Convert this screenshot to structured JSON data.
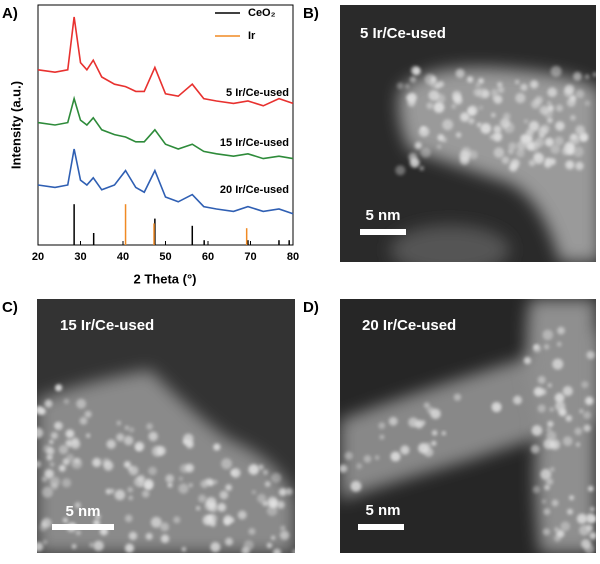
{
  "panel_labels": [
    "A)",
    "B)",
    "C)",
    "D)"
  ],
  "chart_data": {
    "type": "line",
    "xlabel": "2 Theta (°)",
    "ylabel": "Intensity (a.u.)",
    "x": [
      20,
      24,
      27,
      28.5,
      30,
      31.5,
      33,
      35,
      38,
      40.6,
      43,
      45,
      47.5,
      50,
      53,
      56.3,
      59,
      62,
      66,
      69.4,
      73,
      76.7,
      80
    ],
    "series": [
      {
        "name": "5 Ir/Ce-used",
        "color": "#e8312f",
        "values": [
          73,
          72,
          73,
          95,
          76,
          73,
          77,
          70,
          67,
          66,
          64,
          64,
          74,
          63,
          62,
          67,
          61,
          60,
          59,
          60,
          58,
          61,
          59
        ]
      },
      {
        "name": "15 Ir/Ce-used",
        "color": "#2e8b3a",
        "values": [
          51,
          50,
          51,
          61,
          52,
          50,
          53,
          48,
          46,
          45,
          43,
          43,
          48,
          42,
          40,
          42,
          39,
          38,
          37,
          38,
          36,
          37,
          36
        ]
      },
      {
        "name": "20 Ir/Ce-used",
        "color": "#2f5fb3",
        "values": [
          25,
          24,
          25,
          40,
          27,
          25,
          28,
          23,
          25,
          31,
          24,
          22,
          31,
          20,
          18,
          21,
          16,
          15,
          14,
          16,
          14,
          15,
          13
        ]
      }
    ],
    "references": [
      {
        "name": "CeO₂",
        "color": "#000000",
        "positions": [
          28.5,
          33.1,
          47.5,
          56.3,
          59.1,
          69.4,
          76.7,
          79.1
        ],
        "intensities": [
          17,
          5,
          11,
          8,
          2,
          2,
          2,
          2
        ]
      },
      {
        "name": "Ir",
        "color": "#f08a24",
        "positions": [
          40.6,
          47.3,
          69.1
        ],
        "intensities": [
          17,
          9,
          7
        ]
      }
    ],
    "xlim": [
      20,
      80
    ],
    "ylim": [
      0,
      100
    ],
    "xticks": [
      20,
      30,
      40,
      50,
      60,
      70,
      80
    ]
  },
  "images": [
    {
      "title": "5 Ir/Ce-used",
      "scale_bar": "5 nm"
    },
    {
      "title": "15 Ir/Ce-used",
      "scale_bar": "5 nm"
    },
    {
      "title": "20 Ir/Ce-used",
      "scale_bar": "5 nm"
    }
  ]
}
